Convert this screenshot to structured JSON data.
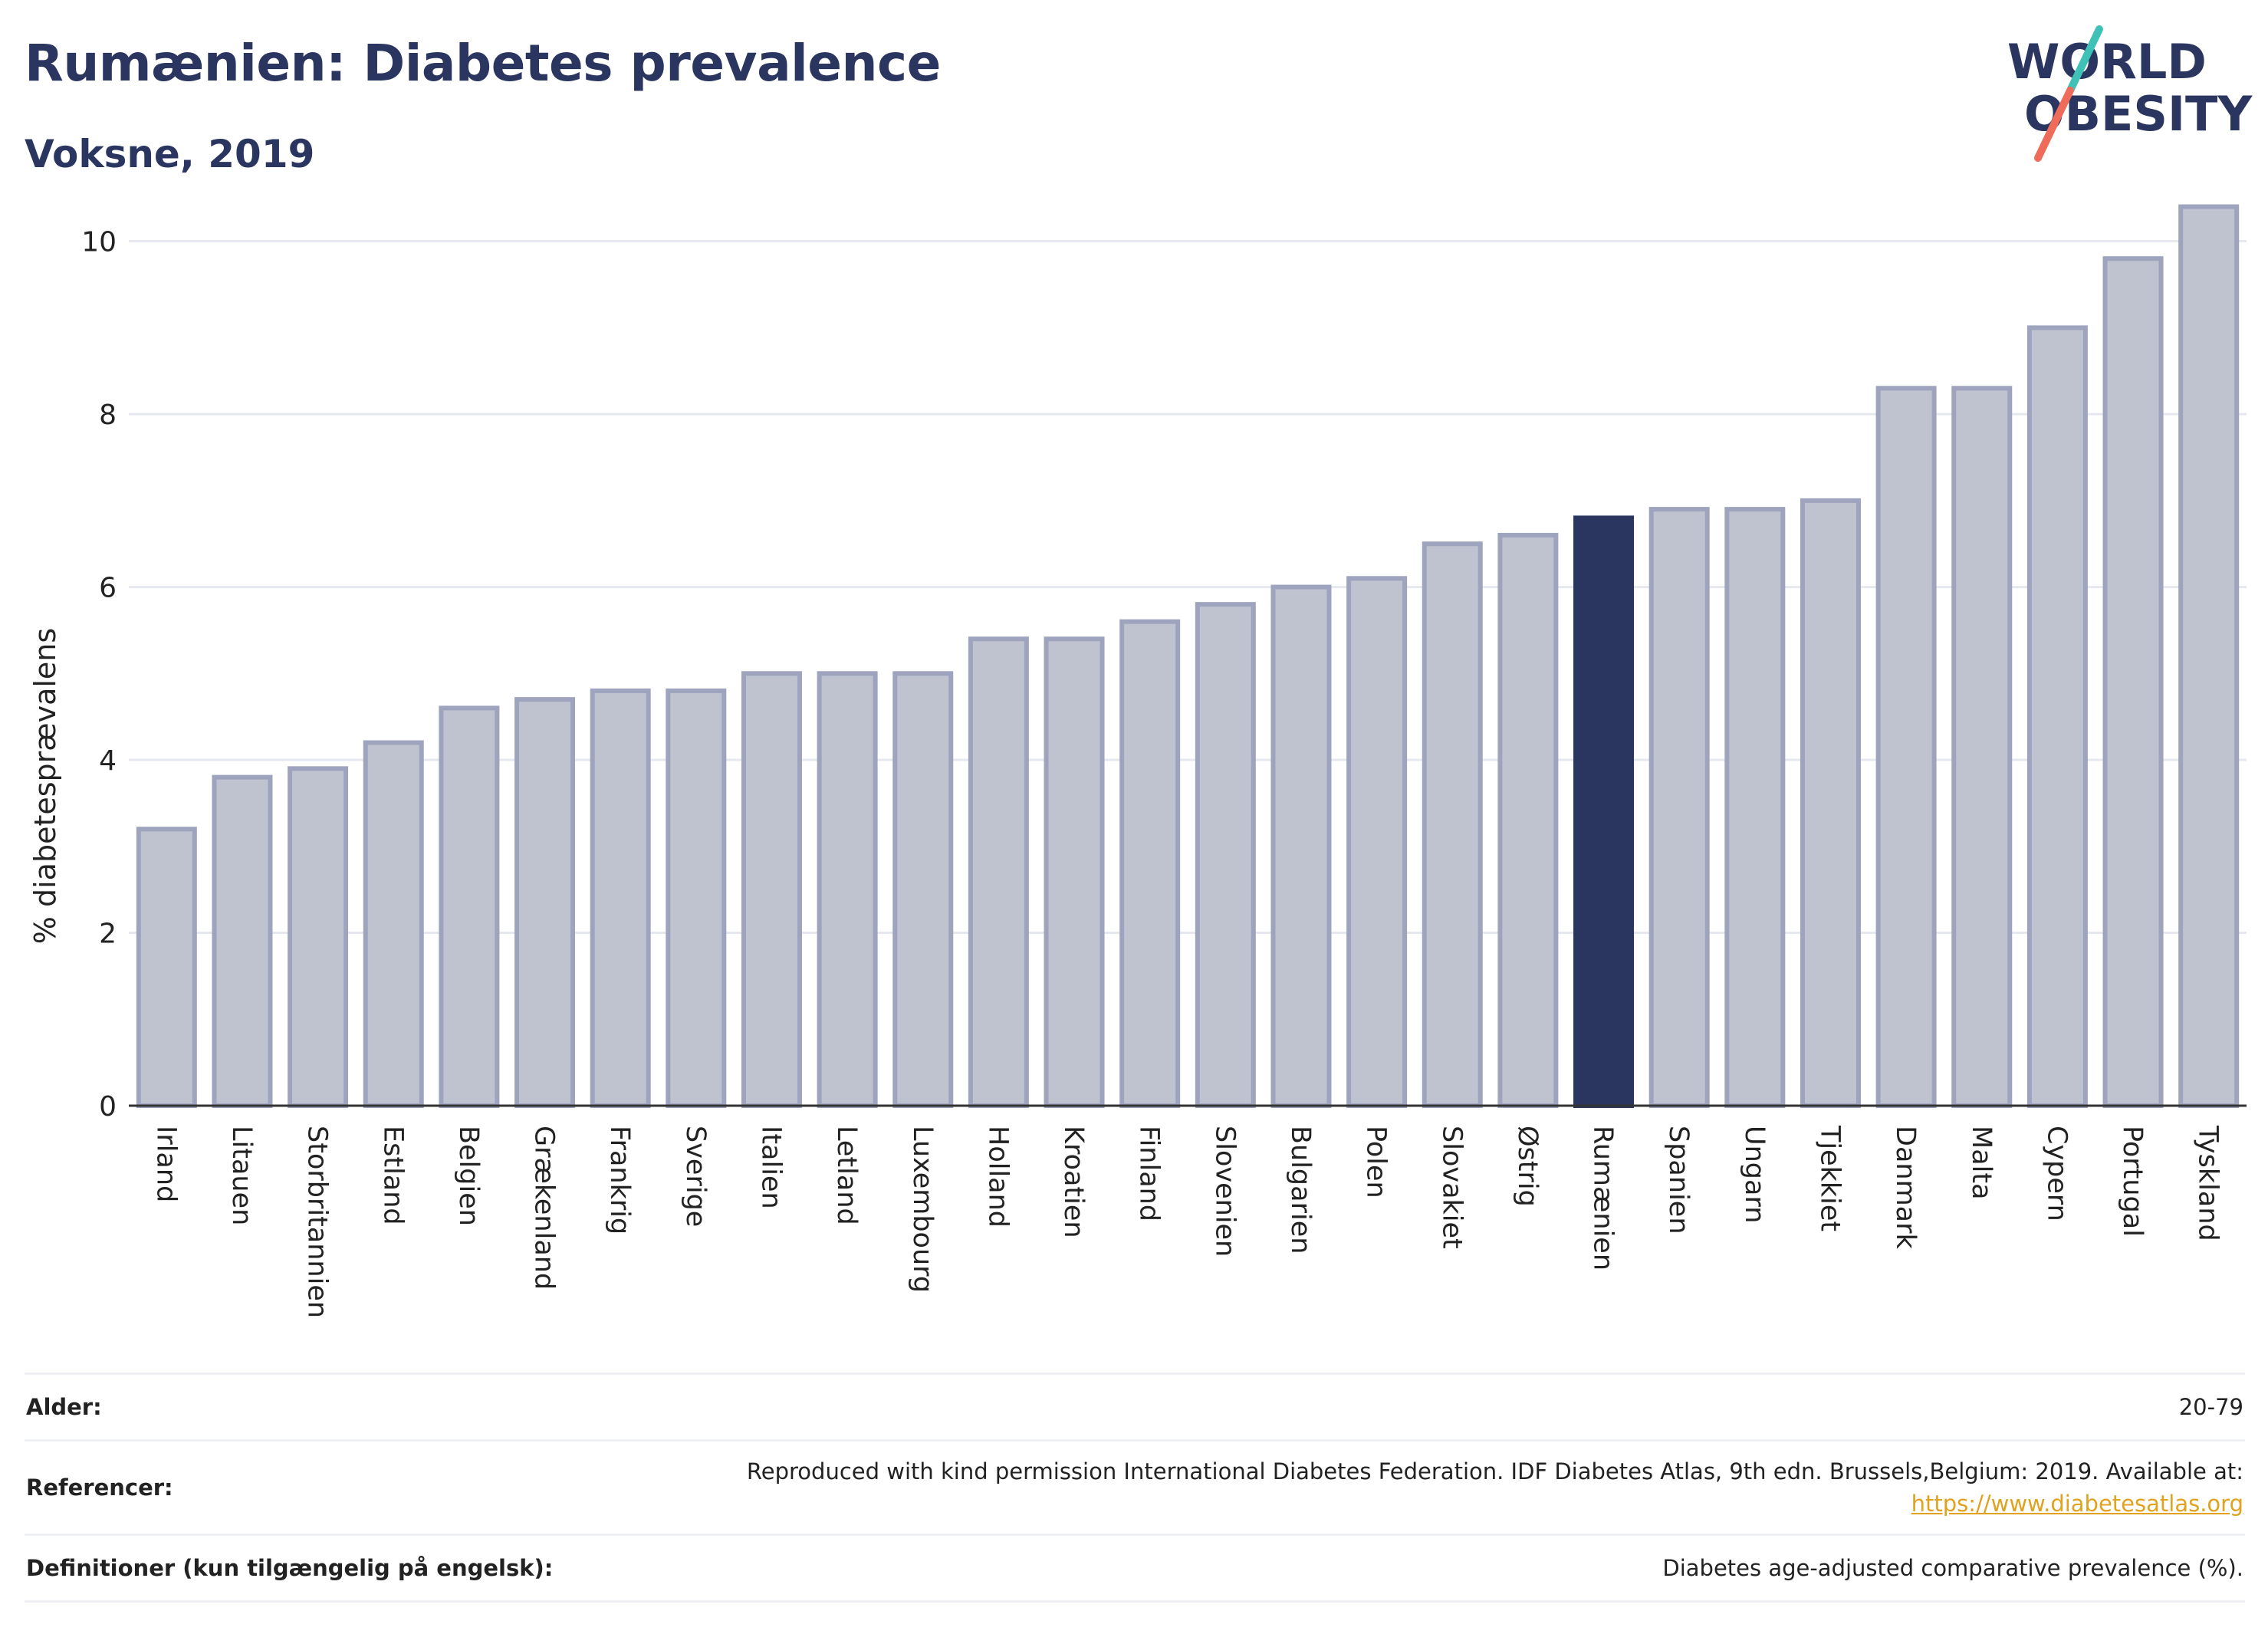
{
  "header": {
    "title": "Rumænien: Diabetes prevalence",
    "subtitle": "Voksne, 2019"
  },
  "logo": {
    "line1": "WORLD",
    "line2": "OBESITY"
  },
  "chart_data": {
    "type": "bar",
    "ylabel": "% diabetesprævalens",
    "ylim": [
      0,
      10.6
    ],
    "yticks": [
      0,
      2,
      4,
      6,
      8,
      10
    ],
    "grid": true,
    "highlight": "Rumænien",
    "categories": [
      "Irland",
      "Litauen",
      "Storbritannien",
      "Estland",
      "Belgien",
      "Grækenland",
      "Frankrig",
      "Sverige",
      "Italien",
      "Letland",
      "Luxembourg",
      "Holland",
      "Kroatien",
      "Finland",
      "Slovenien",
      "Bulgarien",
      "Polen",
      "Slovakiet",
      "Østrig",
      "Rumænien",
      "Spanien",
      "Ungarn",
      "Tjekkiet",
      "Danmark",
      "Malta",
      "Cypern",
      "Portugal",
      "Tyskland"
    ],
    "values": [
      3.2,
      3.8,
      3.9,
      4.2,
      4.6,
      4.7,
      4.8,
      4.8,
      5.0,
      5.0,
      5.0,
      5.4,
      5.4,
      5.6,
      5.8,
      6.0,
      6.1,
      6.5,
      6.6,
      6.8,
      6.9,
      6.9,
      7.0,
      8.3,
      8.3,
      9.0,
      9.8,
      10.4
    ]
  },
  "colors": {
    "bar": "#bfc3d0",
    "bar_border": "#9ea4bd",
    "highlight": "#2b3660",
    "title": "#2b3660",
    "grid": "#e6e8ef",
    "link": "#e0a21f",
    "logo_teal": "#3fc1b8",
    "logo_coral": "#ef6b5a"
  },
  "meta": {
    "age_label": "Alder:",
    "age_value": "20-79",
    "ref_label": "Referencer:",
    "ref_value": "Reproduced with kind permission International Diabetes Federation. IDF Diabetes Atlas, 9th edn. Brussels,Belgium: 2019. Available at:",
    "ref_link": "https://www.diabetesatlas.org",
    "def_label": "Definitioner (kun tilgængelig på engelsk):",
    "def_value": "Diabetes age-adjusted comparative prevalence (%)."
  }
}
